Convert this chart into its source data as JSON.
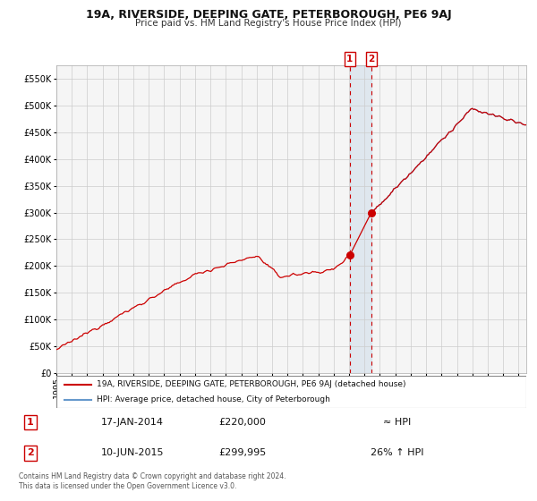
{
  "title": "19A, RIVERSIDE, DEEPING GATE, PETERBOROUGH, PE6 9AJ",
  "subtitle": "Price paid vs. HM Land Registry's House Price Index (HPI)",
  "legend_entry1": "19A, RIVERSIDE, DEEPING GATE, PETERBOROUGH, PE6 9AJ (detached house)",
  "legend_entry2": "HPI: Average price, detached house, City of Peterborough",
  "table_row1_date": "17-JAN-2014",
  "table_row1_price": "£220,000",
  "table_row1_hpi": "≈ HPI",
  "table_row2_date": "10-JUN-2015",
  "table_row2_price": "£299,995",
  "table_row2_hpi": "26% ↑ HPI",
  "footnote1": "Contains HM Land Registry data © Crown copyright and database right 2024.",
  "footnote2": "This data is licensed under the Open Government Licence v3.0.",
  "hpi_color": "#6699cc",
  "price_color": "#cc0000",
  "grid_color": "#cccccc",
  "chart_bg": "#f5f5f5",
  "sale1_year": 2014.04,
  "sale1_price": 220000,
  "sale2_year": 2015.44,
  "sale2_price": 299995,
  "ylim_min": 0,
  "ylim_max": 575000,
  "xlim_min": 1995.0,
  "xlim_max": 2025.5,
  "ytick_interval": 50000
}
